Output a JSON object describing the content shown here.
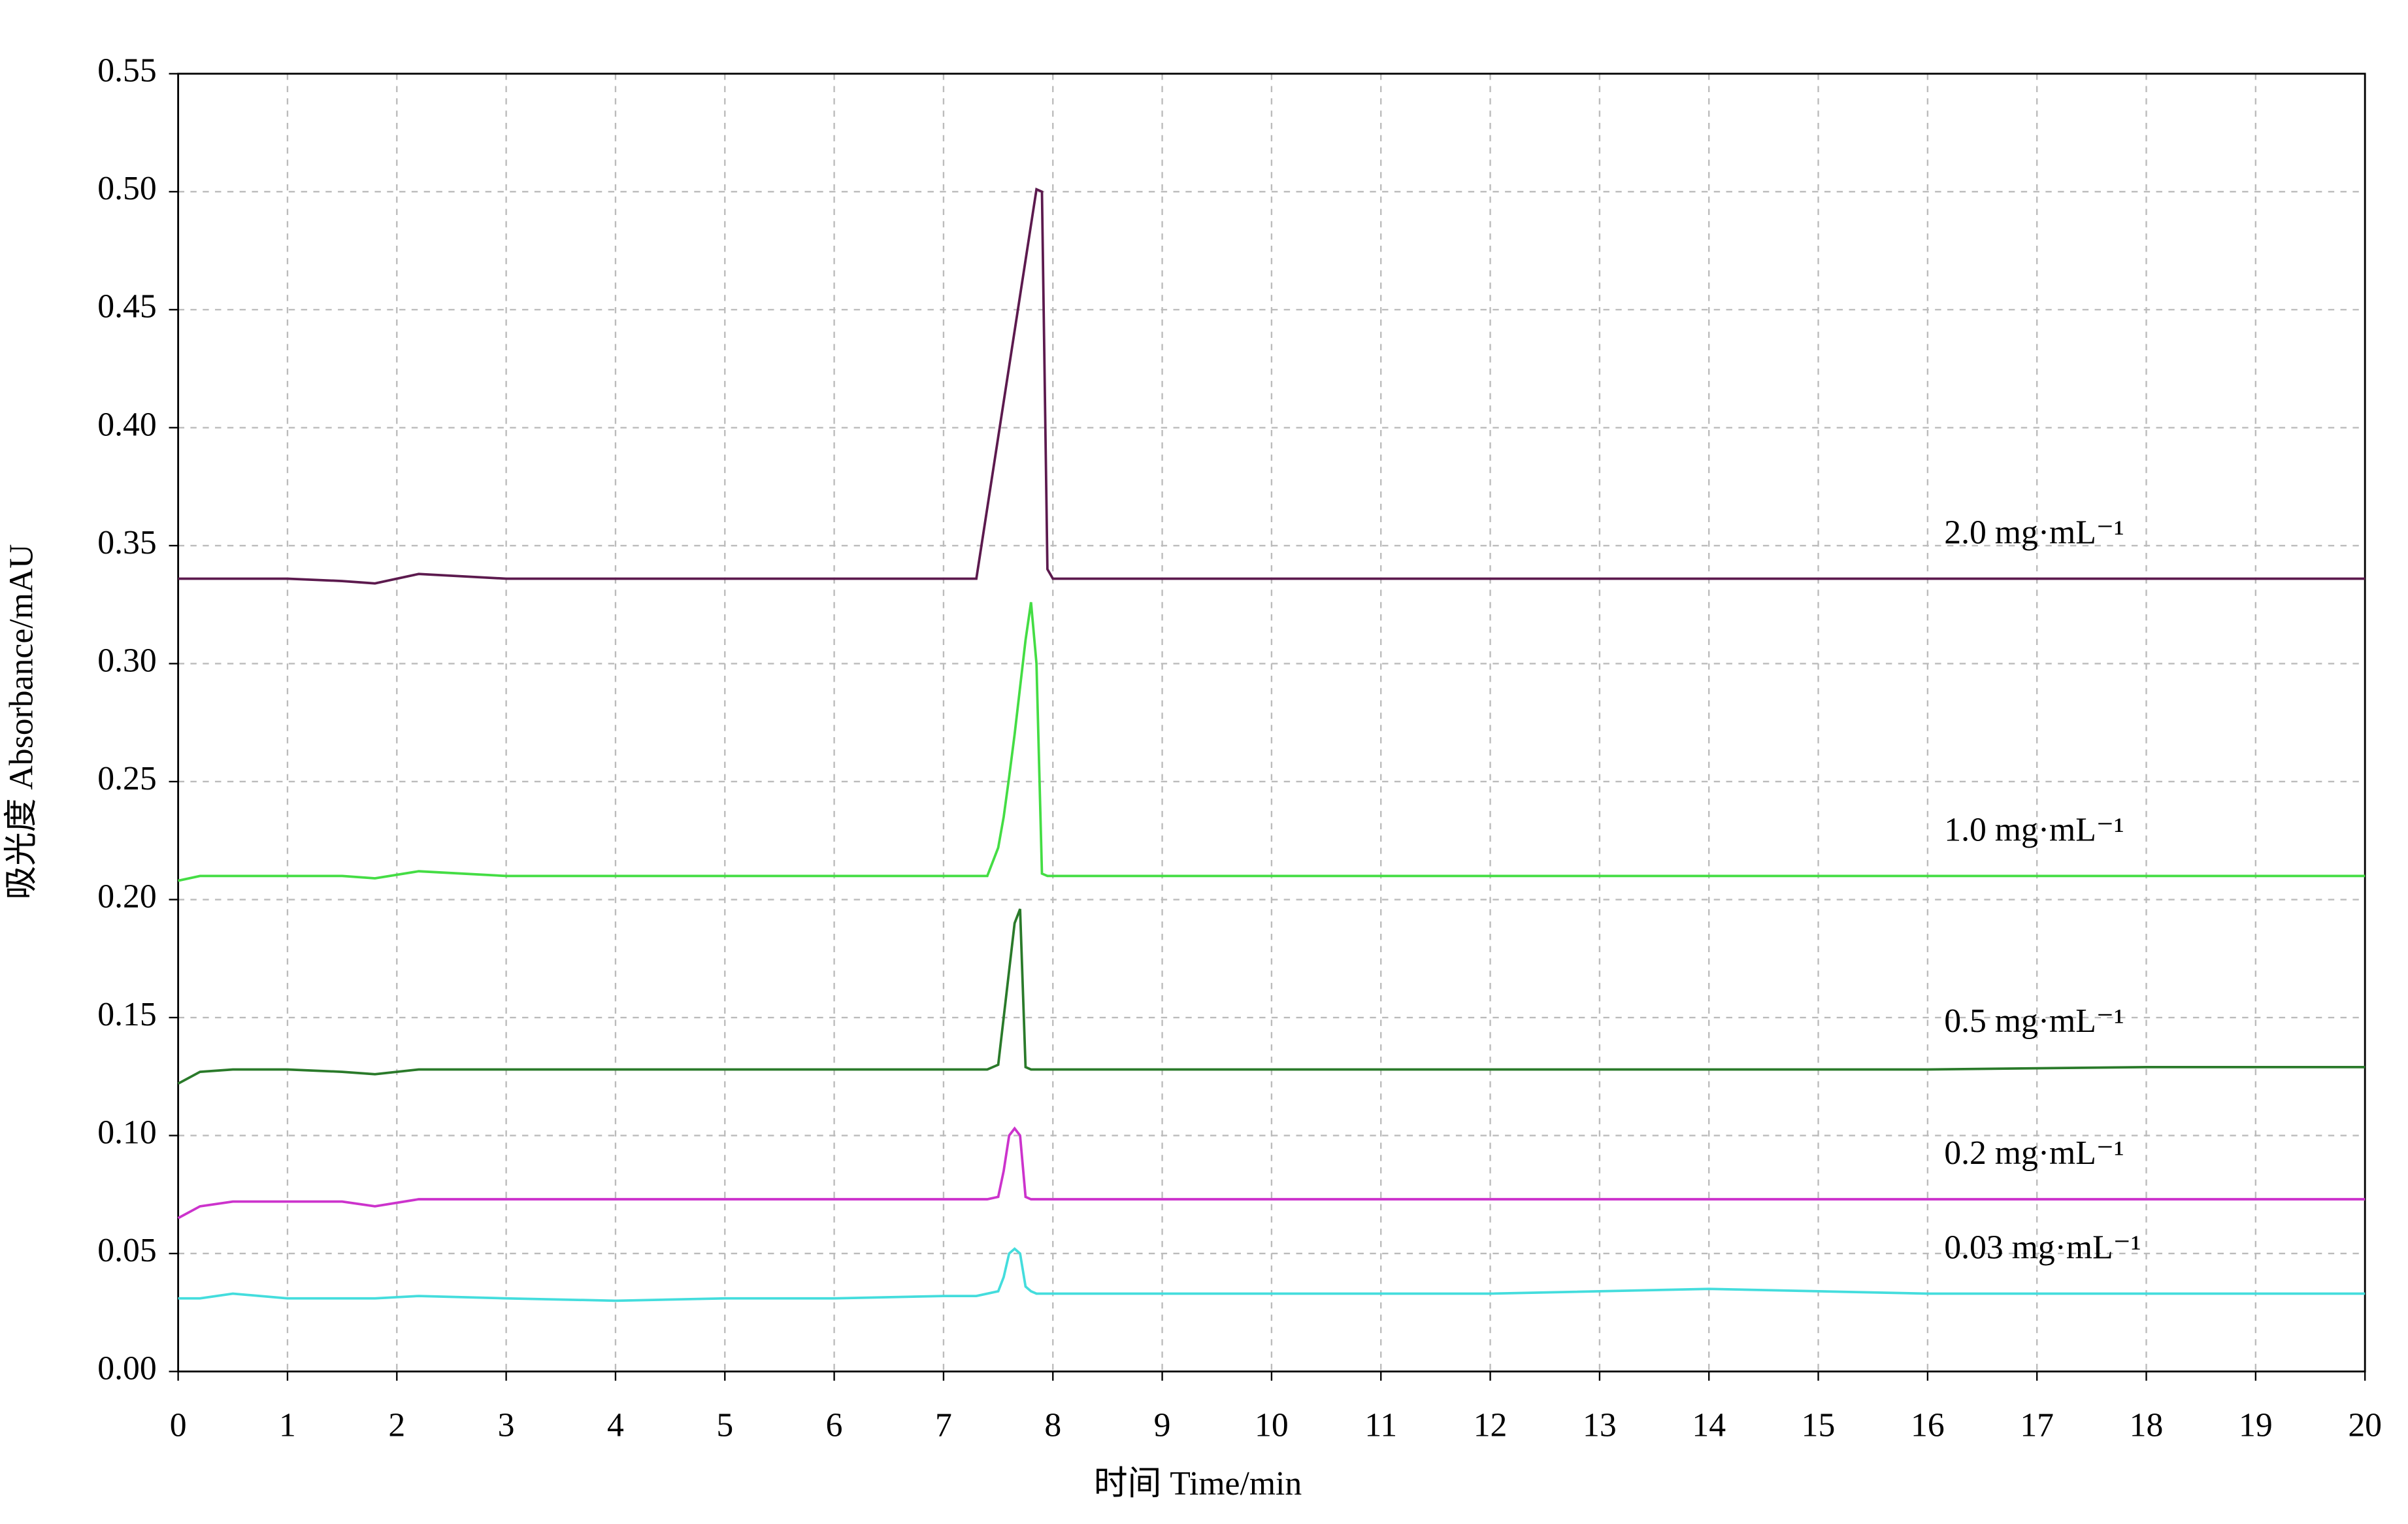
{
  "chart_data": {
    "type": "line",
    "xlabel": "时间  Time/min",
    "ylabel": "吸光度  Absorbance/mAU",
    "x": [
      0,
      0.2,
      0.5,
      1,
      1.5,
      1.8,
      2.2,
      3,
      4,
      5,
      6,
      7,
      7.3,
      7.4,
      7.5,
      7.55,
      7.6,
      7.65,
      7.7,
      7.75,
      7.8,
      7.85,
      7.9,
      7.95,
      8,
      9,
      10,
      12,
      14,
      16,
      18,
      20
    ],
    "series": [
      {
        "name": "2.0 mg·mL⁻¹",
        "color": "#5c1a4e",
        "values": [
          0.336,
          0.336,
          0.336,
          0.336,
          0.335,
          0.334,
          0.338,
          0.336,
          0.336,
          0.336,
          0.336,
          0.336,
          0.336,
          0.366,
          0.396,
          0.411,
          0.426,
          0.441,
          0.456,
          0.471,
          0.486,
          0.501,
          0.5,
          0.34,
          0.336,
          0.336,
          0.336,
          0.336,
          0.336,
          0.336,
          0.336,
          0.336
        ]
      },
      {
        "name": "1.0 mg·mL⁻¹",
        "color": "#44dd44",
        "values": [
          0.208,
          0.21,
          0.21,
          0.21,
          0.21,
          0.209,
          0.212,
          0.21,
          0.21,
          0.21,
          0.21,
          0.21,
          0.21,
          0.21,
          0.222,
          0.235,
          0.252,
          0.27,
          0.29,
          0.31,
          0.326,
          0.3,
          0.211,
          0.21,
          0.21,
          0.21,
          0.21,
          0.21,
          0.21,
          0.21,
          0.21,
          0.21
        ]
      },
      {
        "name": "0.5 mg·mL⁻¹",
        "color": "#2a7a2a",
        "values": [
          0.122,
          0.127,
          0.128,
          0.128,
          0.127,
          0.126,
          0.128,
          0.128,
          0.128,
          0.128,
          0.128,
          0.128,
          0.128,
          0.128,
          0.13,
          0.15,
          0.17,
          0.19,
          0.196,
          0.129,
          0.128,
          0.128,
          0.128,
          0.128,
          0.128,
          0.128,
          0.128,
          0.128,
          0.128,
          0.128,
          0.129,
          0.129
        ]
      },
      {
        "name": "0.2 mg·mL⁻¹",
        "color": "#cc33cc",
        "values": [
          0.065,
          0.07,
          0.072,
          0.072,
          0.072,
          0.07,
          0.073,
          0.073,
          0.073,
          0.073,
          0.073,
          0.073,
          0.073,
          0.073,
          0.074,
          0.085,
          0.1,
          0.103,
          0.1,
          0.074,
          0.073,
          0.073,
          0.073,
          0.073,
          0.073,
          0.073,
          0.073,
          0.073,
          0.073,
          0.073,
          0.073,
          0.073
        ]
      },
      {
        "name": "0.03 mg·mL⁻¹",
        "color": "#44dddd",
        "values": [
          0.031,
          0.031,
          0.033,
          0.031,
          0.031,
          0.031,
          0.032,
          0.031,
          0.03,
          0.031,
          0.031,
          0.032,
          0.032,
          0.033,
          0.034,
          0.04,
          0.05,
          0.052,
          0.05,
          0.036,
          0.034,
          0.033,
          0.033,
          0.033,
          0.033,
          0.033,
          0.033,
          0.033,
          0.035,
          0.033,
          0.033,
          0.033
        ]
      }
    ],
    "xlim": [
      0,
      20
    ],
    "ylim": [
      0,
      0.55
    ],
    "xticks": [
      0,
      1,
      2,
      3,
      4,
      5,
      6,
      7,
      8,
      9,
      10,
      11,
      12,
      13,
      14,
      15,
      16,
      17,
      18,
      19,
      20
    ],
    "yticks": [
      {
        "value": 0,
        "label": "0.00"
      },
      0.05,
      {
        "value": 0.1,
        "label": "0.10"
      },
      0.15,
      {
        "value": 0.2,
        "label": "0.20"
      },
      0.25,
      {
        "value": 0.3,
        "label": "0.30"
      },
      0.35,
      {
        "value": 0.4,
        "label": "0.40"
      },
      0.45,
      {
        "value": 0.5,
        "label": "0.50"
      },
      0.55
    ],
    "grid": true
  }
}
